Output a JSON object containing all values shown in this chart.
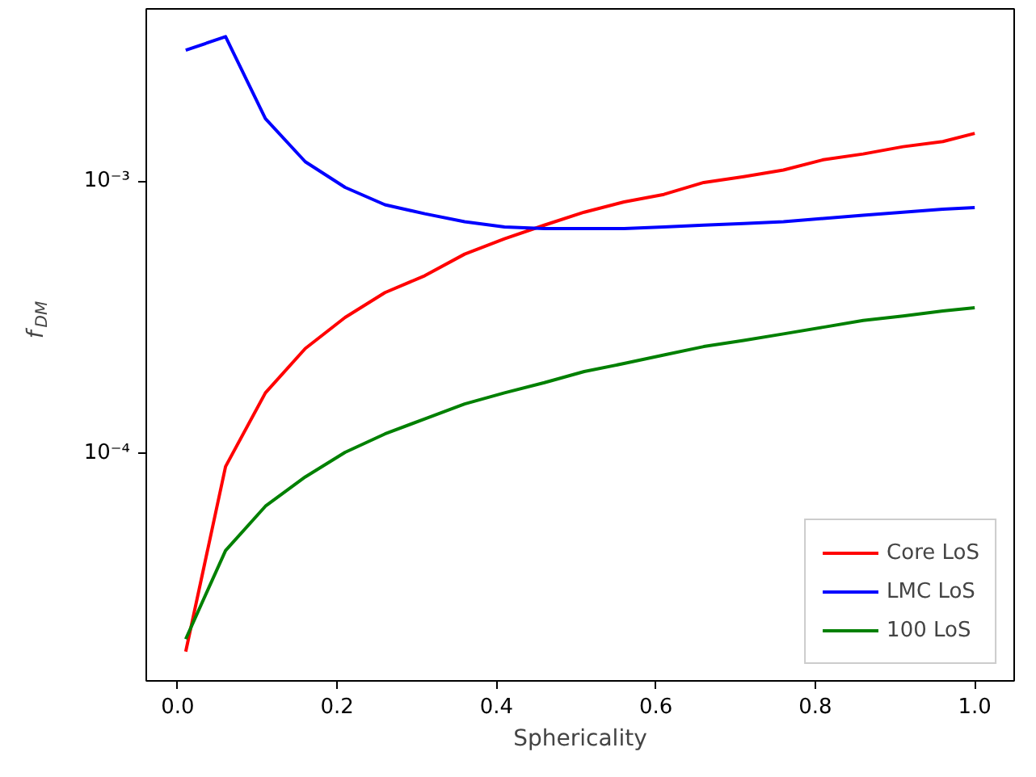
{
  "chart_data": {
    "type": "line",
    "xlabel": "Sphericality",
    "ylabel": "f$_{DM}$",
    "log": "y",
    "grid": false,
    "legend": "bottom right",
    "marker": "none",
    "line_style": "solid",
    "x": [
      0.01,
      0.06,
      0.11,
      0.16,
      0.21,
      0.26,
      0.31,
      0.36,
      0.41,
      0.46,
      0.51,
      0.56,
      0.61,
      0.66,
      0.71,
      0.76,
      0.81,
      0.86,
      0.91,
      0.96,
      1.0
    ],
    "xlim": [
      -0.0395,
      1.0495
    ],
    "xticks": [
      {
        "value": 0,
        "label": "0.0"
      },
      0.2,
      0.4,
      0.6,
      0.8,
      {
        "value": 1,
        "label": "1.0"
      }
    ],
    "ylim": [
      1.46e-05,
      0.0043
    ],
    "yticks": [
      {
        "value": 0.0001,
        "label": "10⁻⁴"
      },
      {
        "value": 0.001,
        "label": "10⁻³"
      }
    ],
    "series": [
      {
        "name": "Core LoS",
        "color": "#ff0000",
        "values": [
          1.87e-05,
          8.95e-05,
          0.000167,
          0.000243,
          0.000316,
          0.00039,
          0.00045,
          0.00054,
          0.000615,
          0.00069,
          0.00077,
          0.00084,
          0.000895,
          0.00099,
          0.00104,
          0.0011,
          0.0012,
          0.00126,
          0.00134,
          0.0014,
          0.0015
        ]
      },
      {
        "name": "LMC LoS",
        "color": "#0000ff",
        "values": [
          0.00303,
          0.0034,
          0.0017,
          0.00118,
          0.00095,
          0.00082,
          0.00076,
          0.00071,
          0.00068,
          0.00067,
          0.00067,
          0.00067,
          0.00068,
          0.00069,
          0.0007,
          0.00071,
          0.00073,
          0.00075,
          0.00077,
          0.00079,
          0.0008
        ]
      },
      {
        "name": "100 LoS",
        "color": "#008000",
        "values": [
          2.08e-05,
          4.4e-05,
          6.4e-05,
          8.2e-05,
          0.000101,
          0.000118,
          0.000134,
          0.000152,
          0.000167,
          0.000182,
          0.0002,
          0.000214,
          0.00023,
          0.000247,
          0.00026,
          0.000275,
          0.000291,
          0.000308,
          0.00032,
          0.000334,
          0.000343
        ]
      }
    ]
  }
}
